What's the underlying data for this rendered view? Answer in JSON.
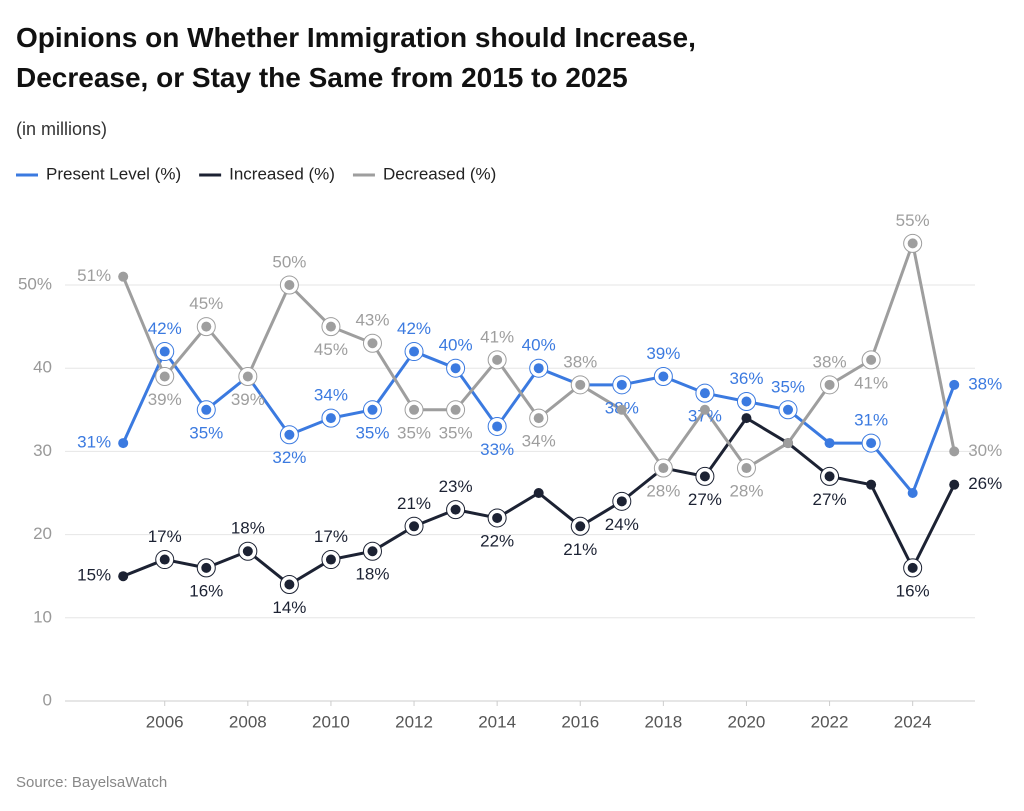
{
  "chart_data": {
    "type": "line",
    "title": "Opinions on Whether Immigration should Increase, Decrease, or Stay the Same from 2015 to 2025",
    "subtitle": "(in millions)",
    "source": "Source: BayelsaWatch",
    "x": [
      2005,
      2006,
      2007,
      2008,
      2009,
      2010,
      2011,
      2012,
      2013,
      2014,
      2015,
      2016,
      2017,
      2018,
      2019,
      2020,
      2021,
      2022,
      2023,
      2024,
      2025
    ],
    "xlim": [
      2003.6,
      2025.5
    ],
    "xticks": [
      2006,
      2008,
      2010,
      2012,
      2014,
      2016,
      2018,
      2020,
      2022,
      2024
    ],
    "ylim": [
      0,
      55
    ],
    "yticks": [
      0,
      10,
      20,
      30,
      40,
      {
        "value": 50,
        "label": "50%"
      }
    ],
    "grid": true,
    "series": [
      {
        "name": "Present Level (%)",
        "color": "#3b7ae0",
        "values": [
          31,
          42,
          35,
          39,
          32,
          34,
          35,
          42,
          40,
          33,
          40,
          38,
          38,
          39,
          37,
          36,
          35,
          31,
          31,
          25,
          38
        ],
        "value_labels": [
          "31%",
          "42%",
          "35%",
          null,
          "32%",
          "34%",
          "35%",
          "42%",
          "40%",
          "33%",
          "40%",
          null,
          "38%",
          "39%",
          "37%",
          "36%",
          "35%",
          null,
          "31%",
          null,
          "38%"
        ]
      },
      {
        "name": "Increased (%)",
        "color": "#1c2233",
        "values": [
          15,
          17,
          16,
          18,
          14,
          17,
          18,
          21,
          23,
          22,
          25,
          21,
          24,
          28,
          27,
          34,
          31,
          27,
          26,
          16,
          26
        ],
        "value_labels": [
          "15%",
          "17%",
          "16%",
          "18%",
          "14%",
          "17%",
          "18%",
          "21%",
          "23%",
          "22%",
          null,
          "21%",
          "24%",
          null,
          "27%",
          null,
          null,
          "27%",
          null,
          "16%",
          "26%"
        ]
      },
      {
        "name": "Decreased (%)",
        "color": "#9e9e9e",
        "values": [
          51,
          39,
          45,
          39,
          50,
          45,
          43,
          35,
          35,
          41,
          34,
          38,
          35,
          28,
          35,
          28,
          31,
          38,
          41,
          55,
          30
        ],
        "value_labels": [
          "51%",
          "39%",
          "45%",
          "39%",
          "50%",
          "45%",
          "43%",
          "35%",
          "35%",
          "41%",
          "34%",
          "38%",
          null,
          "28%",
          null,
          "28%",
          null,
          "38%",
          "41%",
          "55%",
          "30%"
        ]
      }
    ]
  }
}
